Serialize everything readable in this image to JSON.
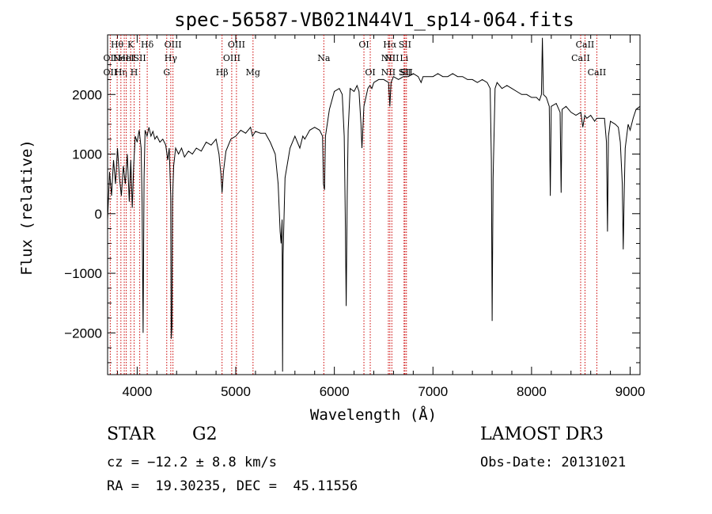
{
  "chart_data": {
    "type": "line",
    "title": "spec-56587-VB021N44V1_sp14-064.fits",
    "xlabel": "Wavelength (Å)",
    "ylabel": "Flux (relative)",
    "xlim": [
      3700,
      9100
    ],
    "ylim": [
      -2700,
      3000
    ],
    "xticks": [
      4000,
      5000,
      6000,
      7000,
      8000,
      9000
    ],
    "xtick_labels": [
      "4000",
      "5000",
      "6000",
      "7000",
      "8000",
      "9000"
    ],
    "yticks": [
      -2000,
      -1000,
      0,
      1000,
      2000
    ],
    "ytick_labels": [
      "−2000",
      "−1000",
      "0",
      "1000",
      "2000"
    ],
    "line_color": "#000000",
    "marker_color": "#cc0000",
    "series": [
      {
        "name": "spectrum",
        "points": [
          [
            3700,
            -100
          ],
          [
            3720,
            700
          ],
          [
            3740,
            300
          ],
          [
            3760,
            900
          ],
          [
            3780,
            500
          ],
          [
            3800,
            1100
          ],
          [
            3820,
            600
          ],
          [
            3840,
            300
          ],
          [
            3860,
            800
          ],
          [
            3880,
            500
          ],
          [
            3900,
            1000
          ],
          [
            3920,
            200
          ],
          [
            3935,
            900
          ],
          [
            3950,
            100
          ],
          [
            3965,
            800
          ],
          [
            3980,
            1300
          ],
          [
            4000,
            1200
          ],
          [
            4020,
            1400
          ],
          [
            4040,
            1100
          ],
          [
            4050,
            200
          ],
          [
            4060,
            -2000
          ],
          [
            4070,
            600
          ],
          [
            4080,
            1400
          ],
          [
            4100,
            1300
          ],
          [
            4120,
            1450
          ],
          [
            4140,
            1300
          ],
          [
            4160,
            1380
          ],
          [
            4180,
            1250
          ],
          [
            4200,
            1300
          ],
          [
            4230,
            1200
          ],
          [
            4260,
            1250
          ],
          [
            4290,
            1150
          ],
          [
            4310,
            900
          ],
          [
            4325,
            1100
          ],
          [
            4340,
            300
          ],
          [
            4345,
            -2100
          ],
          [
            4352,
            -1900
          ],
          [
            4358,
            200
          ],
          [
            4370,
            800
          ],
          [
            4390,
            1100
          ],
          [
            4420,
            1000
          ],
          [
            4450,
            1100
          ],
          [
            4480,
            950
          ],
          [
            4520,
            1050
          ],
          [
            4560,
            1000
          ],
          [
            4600,
            1100
          ],
          [
            4650,
            1050
          ],
          [
            4700,
            1200
          ],
          [
            4750,
            1150
          ],
          [
            4800,
            1250
          ],
          [
            4830,
            1000
          ],
          [
            4850,
            650
          ],
          [
            4861,
            350
          ],
          [
            4875,
            700
          ],
          [
            4900,
            1050
          ],
          [
            4950,
            1250
          ],
          [
            5000,
            1300
          ],
          [
            5050,
            1400
          ],
          [
            5100,
            1350
          ],
          [
            5150,
            1450
          ],
          [
            5170,
            1300
          ],
          [
            5200,
            1380
          ],
          [
            5250,
            1350
          ],
          [
            5300,
            1350
          ],
          [
            5350,
            1200
          ],
          [
            5400,
            1000
          ],
          [
            5430,
            500
          ],
          [
            5450,
            -300
          ],
          [
            5460,
            -500
          ],
          [
            5470,
            -100
          ],
          [
            5475,
            -2650
          ],
          [
            5480,
            -700
          ],
          [
            5500,
            600
          ],
          [
            5550,
            1100
          ],
          [
            5600,
            1300
          ],
          [
            5650,
            1100
          ],
          [
            5680,
            1300
          ],
          [
            5700,
            1250
          ],
          [
            5750,
            1400
          ],
          [
            5800,
            1450
          ],
          [
            5850,
            1400
          ],
          [
            5880,
            1300
          ],
          [
            5890,
            500
          ],
          [
            5900,
            400
          ],
          [
            5910,
            1300
          ],
          [
            5950,
            1750
          ],
          [
            6000,
            2050
          ],
          [
            6050,
            2100
          ],
          [
            6080,
            2000
          ],
          [
            6100,
            1300
          ],
          [
            6110,
            0
          ],
          [
            6120,
            -1550
          ],
          [
            6130,
            300
          ],
          [
            6140,
            1400
          ],
          [
            6160,
            2100
          ],
          [
            6200,
            2050
          ],
          [
            6230,
            2150
          ],
          [
            6250,
            2050
          ],
          [
            6270,
            1500
          ],
          [
            6280,
            1100
          ],
          [
            6300,
            1800
          ],
          [
            6340,
            2100
          ],
          [
            6360,
            2150
          ],
          [
            6380,
            2100
          ],
          [
            6400,
            2200
          ],
          [
            6450,
            2250
          ],
          [
            6500,
            2250
          ],
          [
            6550,
            2200
          ],
          [
            6563,
            1800
          ],
          [
            6575,
            2200
          ],
          [
            6600,
            2300
          ],
          [
            6650,
            2250
          ],
          [
            6700,
            2300
          ],
          [
            6750,
            2300
          ],
          [
            6800,
            2350
          ],
          [
            6850,
            2300
          ],
          [
            6880,
            2200
          ],
          [
            6900,
            2300
          ],
          [
            6950,
            2300
          ],
          [
            7000,
            2300
          ],
          [
            7050,
            2350
          ],
          [
            7100,
            2300
          ],
          [
            7150,
            2300
          ],
          [
            7200,
            2350
          ],
          [
            7250,
            2300
          ],
          [
            7300,
            2300
          ],
          [
            7350,
            2250
          ],
          [
            7400,
            2250
          ],
          [
            7450,
            2200
          ],
          [
            7500,
            2250
          ],
          [
            7550,
            2200
          ],
          [
            7580,
            2100
          ],
          [
            7592,
            900
          ],
          [
            7600,
            -1800
          ],
          [
            7610,
            600
          ],
          [
            7630,
            2100
          ],
          [
            7650,
            2200
          ],
          [
            7700,
            2100
          ],
          [
            7750,
            2150
          ],
          [
            7800,
            2100
          ],
          [
            7850,
            2050
          ],
          [
            7900,
            2000
          ],
          [
            7950,
            2000
          ],
          [
            8000,
            1950
          ],
          [
            8050,
            1950
          ],
          [
            8080,
            1900
          ],
          [
            8100,
            2000
          ],
          [
            8110,
            2950
          ],
          [
            8120,
            2000
          ],
          [
            8150,
            1950
          ],
          [
            8180,
            1800
          ],
          [
            8190,
            300
          ],
          [
            8200,
            1800
          ],
          [
            8250,
            1850
          ],
          [
            8290,
            1700
          ],
          [
            8300,
            350
          ],
          [
            8310,
            1750
          ],
          [
            8350,
            1800
          ],
          [
            8400,
            1700
          ],
          [
            8450,
            1650
          ],
          [
            8500,
            1700
          ],
          [
            8520,
            1450
          ],
          [
            8540,
            1650
          ],
          [
            8560,
            1600
          ],
          [
            8600,
            1650
          ],
          [
            8640,
            1550
          ],
          [
            8660,
            1600
          ],
          [
            8700,
            1600
          ],
          [
            8740,
            1600
          ],
          [
            8760,
            1200
          ],
          [
            8770,
            -300
          ],
          [
            8780,
            1300
          ],
          [
            8800,
            1550
          ],
          [
            8850,
            1500
          ],
          [
            8880,
            1450
          ],
          [
            8900,
            1200
          ],
          [
            8920,
            500
          ],
          [
            8930,
            -600
          ],
          [
            8940,
            400
          ],
          [
            8950,
            1100
          ],
          [
            8980,
            1500
          ],
          [
            9000,
            1400
          ],
          [
            9030,
            1600
          ],
          [
            9060,
            1750
          ],
          [
            9100,
            1800
          ]
        ]
      }
    ],
    "line_markers": [
      {
        "x": 3727,
        "labels": [
          "OII",
          "OII"
        ],
        "rows": [
          1,
          2
        ]
      },
      {
        "x": 3797,
        "labels": [
          "Hθ"
        ],
        "rows": [
          0
        ]
      },
      {
        "x": 3835,
        "labels": [
          "Hη"
        ],
        "rows": [
          2
        ]
      },
      {
        "x": 3869,
        "labels": [
          "NeIII"
        ],
        "rows": [
          1
        ]
      },
      {
        "x": 3889,
        "labels": [
          "HeI"
        ],
        "rows": [
          1
        ]
      },
      {
        "x": 3934,
        "labels": [
          "K"
        ],
        "rows": [
          0
        ]
      },
      {
        "x": 3969,
        "labels": [
          "H"
        ],
        "rows": [
          2
        ]
      },
      {
        "x": 4026,
        "labels": [
          "SII"
        ],
        "rows": [
          1
        ]
      },
      {
        "x": 4102,
        "labels": [
          "Hδ"
        ],
        "rows": [
          0
        ]
      },
      {
        "x": 4300,
        "labels": [
          "G"
        ],
        "rows": [
          2
        ]
      },
      {
        "x": 4341,
        "labels": [
          "Hγ"
        ],
        "rows": [
          1
        ]
      },
      {
        "x": 4363,
        "labels": [
          "OIII"
        ],
        "rows": [
          0
        ]
      },
      {
        "x": 4861,
        "labels": [
          "Hβ"
        ],
        "rows": [
          2
        ]
      },
      {
        "x": 4959,
        "labels": [
          "OIII"
        ],
        "rows": [
          1
        ]
      },
      {
        "x": 5007,
        "labels": [
          "OIII"
        ],
        "rows": [
          0
        ]
      },
      {
        "x": 5175,
        "labels": [
          "Mg"
        ],
        "rows": [
          2
        ]
      },
      {
        "x": 5893,
        "labels": [
          "Na"
        ],
        "rows": [
          1
        ]
      },
      {
        "x": 6300,
        "labels": [
          "OI"
        ],
        "rows": [
          0
        ]
      },
      {
        "x": 6364,
        "labels": [
          "OI"
        ],
        "rows": [
          2
        ]
      },
      {
        "x": 6548,
        "labels": [
          "NII",
          "NII"
        ],
        "rows": [
          1,
          2
        ]
      },
      {
        "x": 6563,
        "labels": [
          "Hα"
        ],
        "rows": [
          0
        ]
      },
      {
        "x": 6583,
        "labels": [
          "NII"
        ],
        "rows": [
          1
        ]
      },
      {
        "x": 6707,
        "labels": [
          "Li"
        ],
        "rows": [
          1
        ]
      },
      {
        "x": 6716,
        "labels": [
          "SII",
          "SII"
        ],
        "rows": [
          0,
          2
        ]
      },
      {
        "x": 6731,
        "labels": [
          "SII"
        ],
        "rows": [
          2
        ]
      },
      {
        "x": 8498,
        "labels": [
          "CaII"
        ],
        "rows": [
          1
        ]
      },
      {
        "x": 8542,
        "labels": [
          "CaII"
        ],
        "rows": [
          0
        ]
      },
      {
        "x": 8662,
        "labels": [
          "CaII"
        ],
        "rows": [
          2
        ]
      }
    ]
  },
  "info": {
    "class_label": "STAR",
    "subclass": "G2",
    "survey": "LAMOST DR3",
    "velocity": "cz = −12.2 ± 8.8 km/s",
    "obs_date": "Obs-Date: 20131021",
    "coordinates": "RA =  19.30235, DEC =  45.11556"
  }
}
